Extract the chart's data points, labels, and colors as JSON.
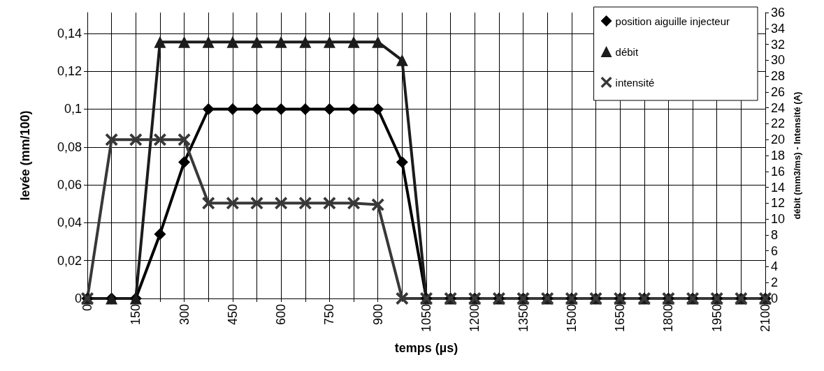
{
  "chart_data": {
    "type": "line",
    "xlabel": "temps (µs)",
    "ylabel": "levée (mm/100)",
    "y2label": "débit (mm3/ms) - Intensité (A)",
    "x": [
      0,
      75,
      150,
      225,
      300,
      375,
      450,
      525,
      600,
      675,
      750,
      825,
      900,
      975,
      1050,
      1125,
      1200,
      1275,
      1350,
      1425,
      1500,
      1575,
      1650,
      1725,
      1800,
      1875,
      1950,
      2025,
      2100
    ],
    "series": [
      {
        "name": "position aiguille injecteur",
        "color": "#000000",
        "marker": "diamond",
        "values": [
          0,
          0,
          0,
          0.034,
          0.072,
          0.1,
          0.1,
          0.1,
          0.1,
          0.1,
          0.1,
          0.1,
          0.1,
          0.072,
          0,
          0,
          0,
          0,
          0,
          0,
          0,
          0,
          0,
          0,
          0,
          0,
          0,
          0,
          0
        ]
      },
      {
        "name": "débit",
        "color": "#1c1c1c",
        "marker": "triangle",
        "axis": "y2",
        "values": [
          0,
          0,
          0,
          32.3,
          32.3,
          32.3,
          32.3,
          32.3,
          32.3,
          32.3,
          32.3,
          32.3,
          32.3,
          30,
          0,
          0,
          0,
          0,
          0,
          0,
          0,
          0,
          0,
          0,
          0,
          0,
          0,
          0,
          0
        ]
      },
      {
        "name": "intensité",
        "color": "#383838",
        "marker": "cross",
        "axis": "y2",
        "values": [
          0,
          20,
          20,
          20,
          20,
          12,
          12,
          12,
          12,
          12,
          12,
          12,
          11.8,
          0,
          0,
          0,
          0,
          0,
          0,
          0,
          0,
          0,
          0,
          0,
          0,
          0,
          0,
          0,
          0
        ]
      }
    ],
    "xlim": [
      0,
      2100
    ],
    "xticks": [
      0,
      {
        "value": 75,
        "label": null
      },
      150,
      {
        "value": 225,
        "label": null
      },
      300,
      {
        "value": 375,
        "label": null
      },
      450,
      {
        "value": 525,
        "label": null
      },
      600,
      {
        "value": 675,
        "label": null
      },
      750,
      {
        "value": 825,
        "label": null
      },
      900,
      {
        "value": 975,
        "label": null
      },
      1050,
      {
        "value": 1125,
        "label": null
      },
      1200,
      {
        "value": 1275,
        "label": null
      },
      1350,
      {
        "value": 1425,
        "label": null
      },
      1500,
      {
        "value": 1575,
        "label": null
      },
      1650,
      {
        "value": 1725,
        "label": null
      },
      1800,
      {
        "value": 1875,
        "label": null
      },
      1950,
      {
        "value": 2025,
        "label": null
      },
      2100
    ],
    "ylim": [
      0,
      0.151
    ],
    "yticks": [
      0,
      {
        "value": 0.02,
        "label": "0,02"
      },
      {
        "value": 0.04,
        "label": "0,04"
      },
      {
        "value": 0.06,
        "label": "0,06"
      },
      {
        "value": 0.08,
        "label": "0,08"
      },
      {
        "value": 0.1,
        "label": "0,1"
      },
      {
        "value": 0.12,
        "label": "0,12"
      },
      {
        "value": 0.14,
        "label": "0,14"
      }
    ],
    "y2lim": [
      0,
      36
    ],
    "y2ticks": [
      0,
      2,
      4,
      6,
      8,
      10,
      12,
      14,
      16,
      18,
      20,
      22,
      24,
      26,
      28,
      30,
      32,
      34,
      36
    ],
    "grid": true,
    "legend": "top right",
    "line_style": "solid"
  }
}
